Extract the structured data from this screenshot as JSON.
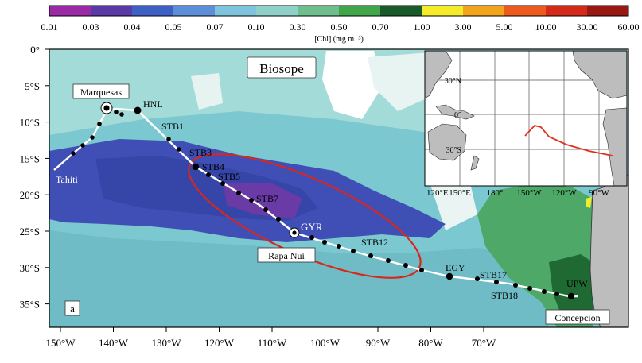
{
  "colorbar": {
    "title": "[Chl] (mg m⁻³)",
    "ticks": [
      "0.01",
      "0.03",
      "0.04",
      "0.05",
      "0.07",
      "0.10",
      "0.30",
      "0.50",
      "0.70",
      "1.00",
      "3.00",
      "5.00",
      "10.00",
      "30.00",
      "60.00"
    ],
    "colors": [
      "#9b2aa6",
      "#5a3aa6",
      "#3e5fc4",
      "#5d8fd8",
      "#7ec4dc",
      "#8fd0c8",
      "#6fbf8e",
      "#41a64a",
      "#1a5a2a",
      "#f4ec2a",
      "#f2a41c",
      "#ec5a1e",
      "#d42a1a",
      "#9a1812"
    ]
  },
  "map": {
    "title": "Biosope",
    "panel_label": "a",
    "x_ticks": [
      "150°W",
      "140°W",
      "130°W",
      "120°W",
      "110°W",
      "100°W",
      "90°W",
      "80°W",
      "70°W"
    ],
    "y_ticks": [
      "0°",
      "5°S",
      "10°S",
      "15°S",
      "20°S",
      "25°S",
      "30°S",
      "35°S"
    ],
    "ocean_color": "#7cc8d0",
    "oligotrophic_color": "#3f4fb5",
    "land_color": "#bdbdbd",
    "track_color": "#ffffff",
    "ellipse_color": "#d8281e",
    "places": {
      "marquesas": "Marquesas",
      "tahiti": "Tahiti",
      "rapa_nui": "Rapa Nui",
      "concepcion": "Concepción"
    },
    "stations": {
      "hnl": "HNL",
      "stb1": "STB1",
      "stb3": "STB3",
      "stb4": "STB4",
      "stb5": "STB5",
      "stb7": "STB7",
      "gyr": "GYR",
      "stb12": "STB12",
      "egy": "EGY",
      "stb17": "STB17",
      "stb18": "STB18",
      "upw": "UPW"
    }
  },
  "inset": {
    "x_ticks": [
      "120°E",
      "150°E",
      "180°",
      "150°W",
      "120°W",
      "90°W"
    ],
    "y_ticks": [
      "30°N",
      "0°",
      "30°S"
    ],
    "route_color": "#e03020"
  }
}
